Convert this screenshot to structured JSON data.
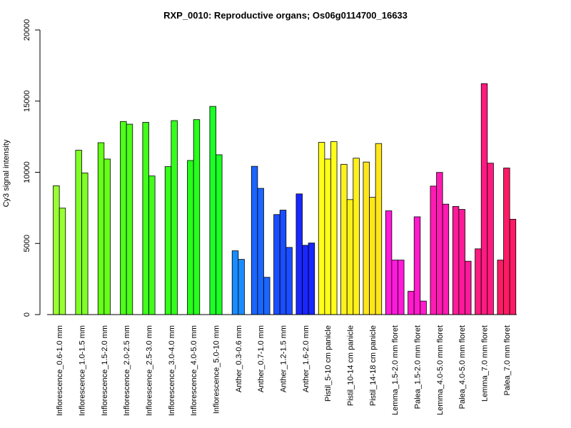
{
  "chart_data": {
    "type": "bar",
    "title": "RXP_0010: Reproductive organs; Os06g0114700_16633",
    "xlabel": "",
    "ylabel": "Cy3 signal intensity",
    "ylim": [
      0,
      20000
    ],
    "yticks": [
      0,
      5000,
      10000,
      15000,
      20000
    ],
    "grid": false,
    "groups": [
      {
        "label": "Inflorescence_0.6-1.0 mm",
        "color": "#99ff33",
        "values": [
          9050,
          7480
        ]
      },
      {
        "label": "Inflorescence_1.0-1.5 mm",
        "color": "#80ff26",
        "values": [
          11550,
          9950
        ]
      },
      {
        "label": "Inflorescence_1.5-2.0 mm",
        "color": "#66ff1a",
        "values": [
          12080,
          10930
        ]
      },
      {
        "label": "Inflorescence_2.0-2.5 mm",
        "color": "#4dff1a",
        "values": [
          13570,
          13380
        ]
      },
      {
        "label": "Inflorescence_2.5-3.0 mm",
        "color": "#40ff1a",
        "values": [
          13510,
          9740
        ]
      },
      {
        "label": "Inflorescence_3.0-4.0 mm",
        "color": "#33ff1a",
        "values": [
          10400,
          13630
        ]
      },
      {
        "label": "Inflorescence_4.0-5.0 mm",
        "color": "#26ff1a",
        "values": [
          10830,
          13700
        ]
      },
      {
        "label": "Inflorescence_5.0-10 mm",
        "color": "#1aff26",
        "values": [
          14630,
          11230
        ]
      },
      {
        "label": "Anther_0.3-0.6 mm",
        "color": "#1a8cff",
        "values": [
          4480,
          3880
        ]
      },
      {
        "label": "Anther_0.7-1.0 mm",
        "color": "#1a66ff",
        "values": [
          10420,
          8870,
          2620
        ]
      },
      {
        "label": "Anther_1.2-1.5 mm",
        "color": "#1a4dff",
        "values": [
          7030,
          7340,
          4720
        ]
      },
      {
        "label": "Anther_1.6-2.0 mm",
        "color": "#1a26ff",
        "values": [
          8480,
          4870,
          5030
        ]
      },
      {
        "label": "Pistil_5-10 cm panicle",
        "color": "#ffff1a",
        "values": [
          12100,
          10930,
          12150
        ]
      },
      {
        "label": "Pistil_10-14 cm panicle",
        "color": "#fff21a",
        "values": [
          10560,
          8080,
          10990
        ]
      },
      {
        "label": "Pistil_14-18 cm panicle",
        "color": "#ffe61a",
        "values": [
          10720,
          8240,
          12020
        ]
      },
      {
        "label": "Lemma_1.5-2.0 mm floret",
        "color": "#ff1ad9",
        "values": [
          7290,
          3830,
          3830
        ]
      },
      {
        "label": "Palea_1.5-2.0 mm floret",
        "color": "#ff1acc",
        "values": [
          1640,
          6870,
          950
        ]
      },
      {
        "label": "Lemma_4.0-5.0 mm floret",
        "color": "#ff1ab3",
        "values": [
          9030,
          9990,
          7760
        ]
      },
      {
        "label": "Palea_4.0-5.0 mm floret",
        "color": "#ff1a99",
        "values": [
          7600,
          7390,
          3750
        ]
      },
      {
        "label": "Lemma_7.0 mm floret",
        "color": "#ff1a80",
        "values": [
          4620,
          16230,
          10640
        ]
      },
      {
        "label": "Palea_7.0 mm floret",
        "color": "#ff1a66",
        "values": [
          3830,
          10300,
          6700
        ]
      }
    ]
  }
}
